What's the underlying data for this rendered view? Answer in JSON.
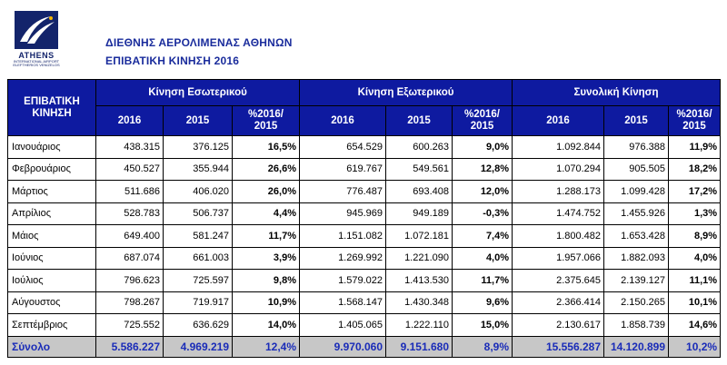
{
  "logo": {
    "main": "ATHENS",
    "sub1": "INTERNATIONAL AIRPORT",
    "sub2": "ELEFTHERIOS VENIZELOS"
  },
  "header": {
    "line1": "ΔΙΕΘΝΗΣ ΑΕΡΟΛΙΜΕΝΑΣ ΑΘΗΝΩΝ",
    "line2": "ΕΠΙΒΑΤΙΚΗ ΚΙΝΗΣΗ 2016"
  },
  "table": {
    "corner_line1": "ΕΠΙΒΑΤΙΚΗ",
    "corner_line2": "ΚΙΝΗΣΗ",
    "groups": [
      "Κίνηση Εσωτερικού",
      "Κίνηση Εξωτερικού",
      "Συνολική Κίνηση"
    ],
    "sub_year1": "2016",
    "sub_year2": "2015",
    "sub_pct_line1": "%2016/",
    "sub_pct_line2": "2015",
    "rows": [
      {
        "month": "Ιανουάριος",
        "d16": "438.315",
        "d15": "376.125",
        "dp": "16,5%",
        "i16": "654.529",
        "i15": "600.263",
        "ip": "9,0%",
        "t16": "1.092.844",
        "t15": "976.388",
        "tp": "11,9%"
      },
      {
        "month": "Φεβρουάριος",
        "d16": "450.527",
        "d15": "355.944",
        "dp": "26,6%",
        "i16": "619.767",
        "i15": "549.561",
        "ip": "12,8%",
        "t16": "1.070.294",
        "t15": "905.505",
        "tp": "18,2%"
      },
      {
        "month": "Μάρτιος",
        "d16": "511.686",
        "d15": "406.020",
        "dp": "26,0%",
        "i16": "776.487",
        "i15": "693.408",
        "ip": "12,0%",
        "t16": "1.288.173",
        "t15": "1.099.428",
        "tp": "17,2%"
      },
      {
        "month": "Απρίλιος",
        "d16": "528.783",
        "d15": "506.737",
        "dp": "4,4%",
        "i16": "945.969",
        "i15": "949.189",
        "ip": "-0,3%",
        "t16": "1.474.752",
        "t15": "1.455.926",
        "tp": "1,3%"
      },
      {
        "month": "Μάιος",
        "d16": "649.400",
        "d15": "581.247",
        "dp": "11,7%",
        "i16": "1.151.082",
        "i15": "1.072.181",
        "ip": "7,4%",
        "t16": "1.800.482",
        "t15": "1.653.428",
        "tp": "8,9%"
      },
      {
        "month": "Ιούνιος",
        "d16": "687.074",
        "d15": "661.003",
        "dp": "3,9%",
        "i16": "1.269.992",
        "i15": "1.221.090",
        "ip": "4,0%",
        "t16": "1.957.066",
        "t15": "1.882.093",
        "tp": "4,0%"
      },
      {
        "month": "Ιούλιος",
        "d16": "796.623",
        "d15": "725.597",
        "dp": "9,8%",
        "i16": "1.579.022",
        "i15": "1.413.530",
        "ip": "11,7%",
        "t16": "2.375.645",
        "t15": "2.139.127",
        "tp": "11,1%"
      },
      {
        "month": "Αύγουστος",
        "d16": "798.267",
        "d15": "719.917",
        "dp": "10,9%",
        "i16": "1.568.147",
        "i15": "1.430.348",
        "ip": "9,6%",
        "t16": "2.366.414",
        "t15": "2.150.265",
        "tp": "10,1%"
      },
      {
        "month": "Σεπτέμβριος",
        "d16": "725.552",
        "d15": "636.629",
        "dp": "14,0%",
        "i16": "1.405.065",
        "i15": "1.222.110",
        "ip": "15,0%",
        "t16": "2.130.617",
        "t15": "1.858.739",
        "tp": "14,6%"
      }
    ],
    "total": {
      "month": "Σύνολο",
      "d16": "5.586.227",
      "d15": "4.969.219",
      "dp": "12,4%",
      "i16": "9.970.060",
      "i15": "9.151.680",
      "ip": "8,9%",
      "t16": "15.556.287",
      "t15": "14.120.899",
      "tp": "10,2%"
    }
  },
  "colors": {
    "header_bg": "#0e1aa0",
    "title_text": "#1a2c9c",
    "total_bg": "#c7c7c7",
    "total_text": "#1a2cb8"
  }
}
